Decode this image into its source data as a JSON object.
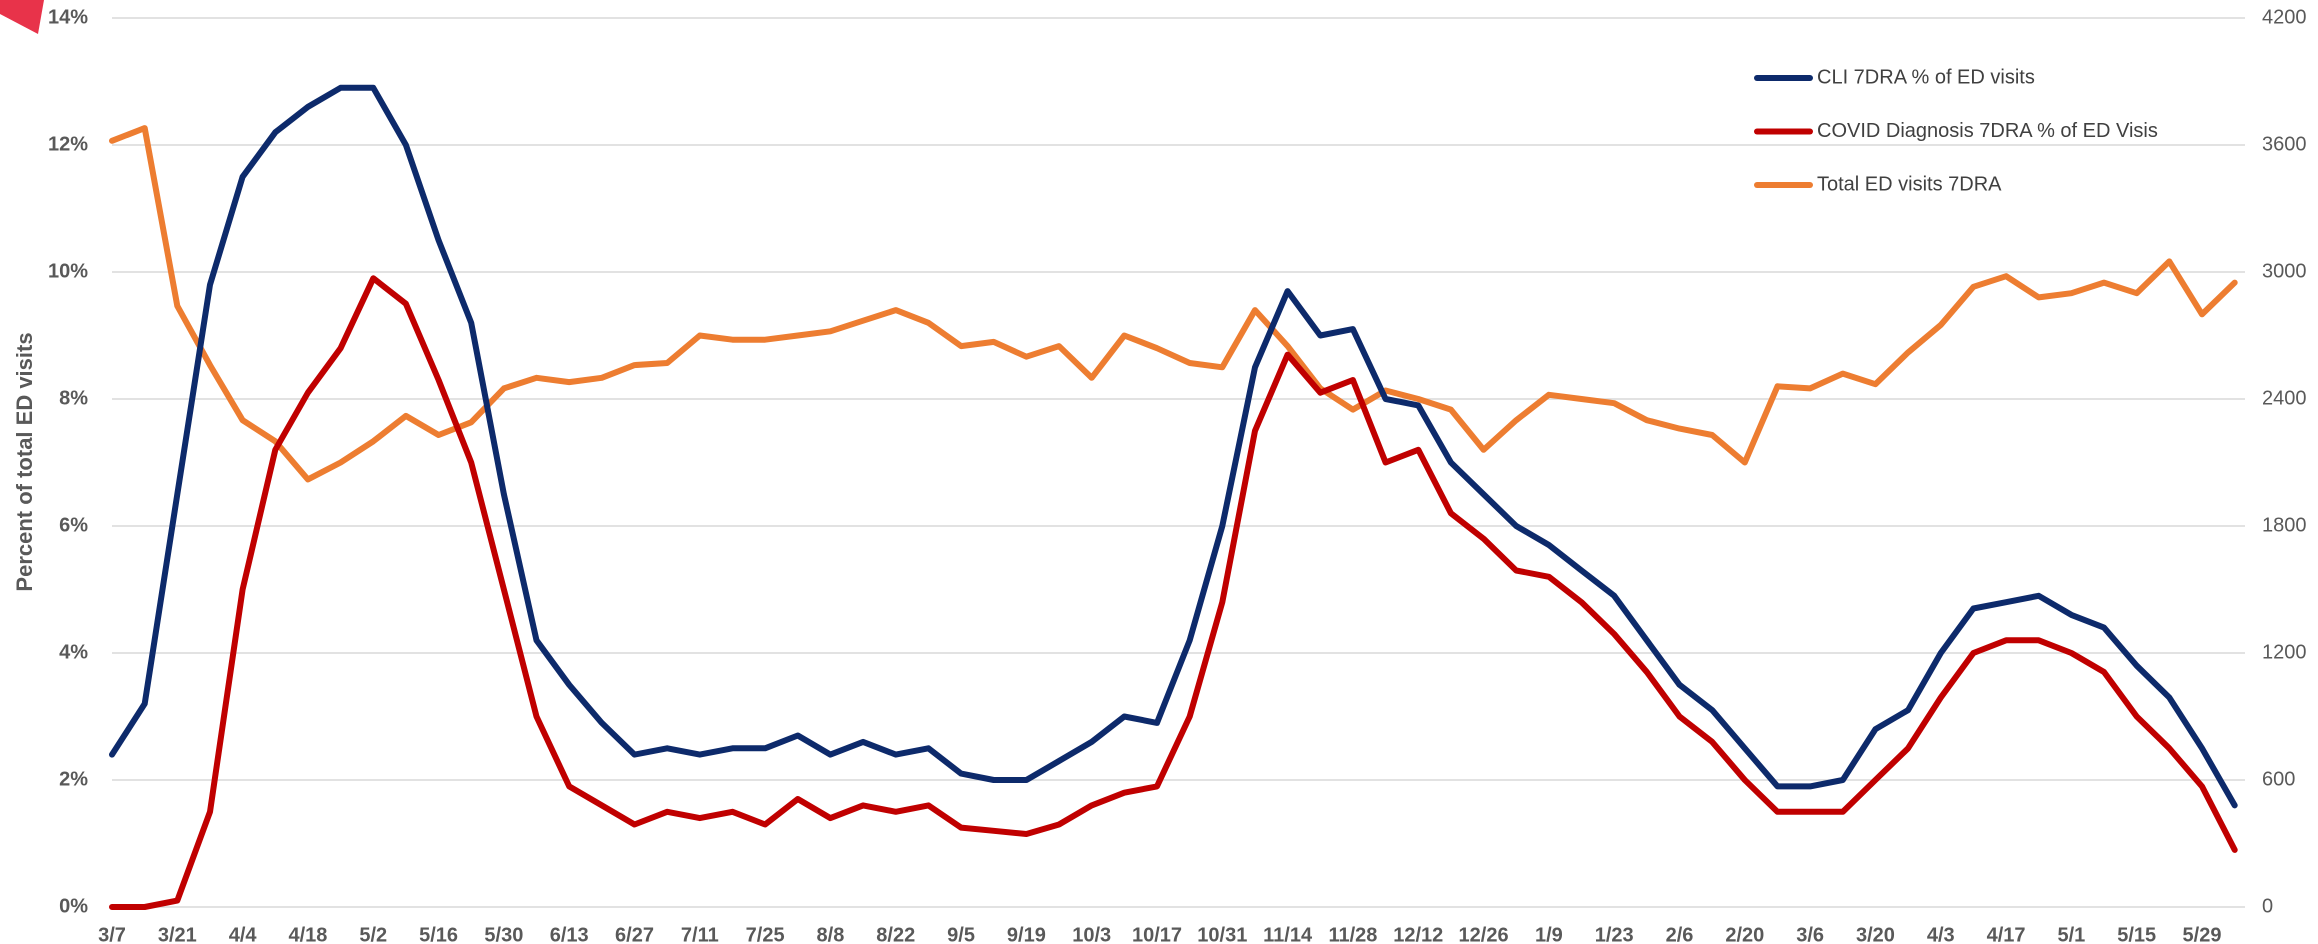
{
  "chart_data": {
    "type": "line",
    "y_label": "Percent of total ED visits",
    "categories": [
      "3/7",
      null,
      "3/21",
      null,
      "4/4",
      null,
      "4/18",
      null,
      "5/2",
      null,
      "5/16",
      null,
      "5/30",
      null,
      "6/13",
      null,
      "6/27",
      null,
      "7/11",
      null,
      "7/25",
      null,
      "8/8",
      null,
      "8/22",
      null,
      "9/5",
      null,
      "9/19",
      null,
      "10/3",
      null,
      "10/17",
      null,
      "10/31",
      null,
      "11/14",
      null,
      "11/28",
      null,
      "12/12",
      null,
      "12/26",
      null,
      "1/9",
      null,
      "1/23",
      null,
      "2/6",
      null,
      "2/20",
      null,
      "3/6",
      null,
      "3/20",
      null,
      "4/3",
      null,
      "4/17",
      null,
      "5/1",
      null,
      "5/15",
      null,
      "5/29",
      null
    ],
    "series": [
      {
        "name": "CLI 7DRA % of ED visits",
        "color": "#0d2a6b",
        "values": [
          2.4,
          3.2,
          6.5,
          9.8,
          11.5,
          12.2,
          12.6,
          12.9,
          12.9,
          12.0,
          10.5,
          9.2,
          6.5,
          4.2,
          3.5,
          2.9,
          2.4,
          2.5,
          2.4,
          2.5,
          2.5,
          2.7,
          2.4,
          2.6,
          2.4,
          2.5,
          2.1,
          2.0,
          2.0,
          2.3,
          2.6,
          3.0,
          2.9,
          4.2,
          6.0,
          8.5,
          9.7,
          9.0,
          9.1,
          8.0,
          7.9,
          7.0,
          6.5,
          6.0,
          5.7,
          5.3,
          4.9,
          4.2,
          3.5,
          3.1,
          2.5,
          1.9,
          1.9,
          2.0,
          2.8,
          3.1,
          4.0,
          4.7,
          4.8,
          4.9,
          4.6,
          4.4,
          3.8,
          3.3,
          2.5,
          1.6
        ]
      },
      {
        "name": "COVID Diagnosis 7DRA % of ED Visis",
        "color": "#c00000",
        "values": [
          0,
          0,
          0.1,
          1.5,
          5.0,
          7.2,
          8.1,
          8.8,
          9.9,
          9.5,
          8.3,
          7.0,
          5.0,
          3.0,
          1.9,
          1.6,
          1.3,
          1.5,
          1.4,
          1.5,
          1.3,
          1.7,
          1.4,
          1.6,
          1.5,
          1.6,
          1.25,
          1.2,
          1.15,
          1.3,
          1.6,
          1.8,
          1.9,
          3.0,
          4.8,
          7.5,
          8.7,
          8.1,
          8.3,
          7.0,
          7.2,
          6.2,
          5.8,
          5.3,
          5.2,
          4.8,
          4.3,
          3.7,
          3.0,
          2.6,
          2.0,
          1.5,
          1.5,
          1.5,
          2.0,
          2.5,
          3.3,
          4.0,
          4.2,
          4.2,
          4.0,
          3.7,
          3.0,
          2.5,
          1.9,
          0.9
        ]
      },
      {
        "name": "Total ED visits 7DRA",
        "color": "#ed7d31",
        "axis": "y2",
        "values": [
          3620,
          3680,
          2840,
          2560,
          2300,
          2200,
          2020,
          2100,
          2200,
          2320,
          2230,
          2290,
          2450,
          2500,
          2480,
          2500,
          2560,
          2570,
          2700,
          2680,
          2680,
          2700,
          2720,
          2770,
          2820,
          2760,
          2650,
          2670,
          2600,
          2650,
          2500,
          2700,
          2640,
          2570,
          2550,
          2820,
          2650,
          2450,
          2350,
          2440,
          2400,
          2350,
          2160,
          2300,
          2420,
          2400,
          2380,
          2300,
          2260,
          2230,
          2100,
          2460,
          2450,
          2520,
          2470,
          2620,
          2750,
          2930,
          2980,
          2880,
          2900,
          2950,
          2900,
          3050,
          2800,
          2950
        ]
      }
    ],
    "ylim": [
      0,
      14
    ],
    "yticks": [
      {
        "value": 0,
        "label": "0%"
      },
      {
        "value": 2,
        "label": "2%"
      },
      {
        "value": 4,
        "label": "4%"
      },
      {
        "value": 6,
        "label": "6%"
      },
      {
        "value": 8,
        "label": "8%"
      },
      {
        "value": 10,
        "label": "10%"
      },
      {
        "value": 12,
        "label": "12%"
      },
      {
        "value": 14,
        "label": "14%"
      }
    ],
    "y2lim": [
      0,
      4200
    ],
    "y2ticks": [
      0,
      600,
      1200,
      1800,
      2400,
      3000,
      3600,
      4200
    ],
    "grid": true,
    "legend": "upper right"
  }
}
